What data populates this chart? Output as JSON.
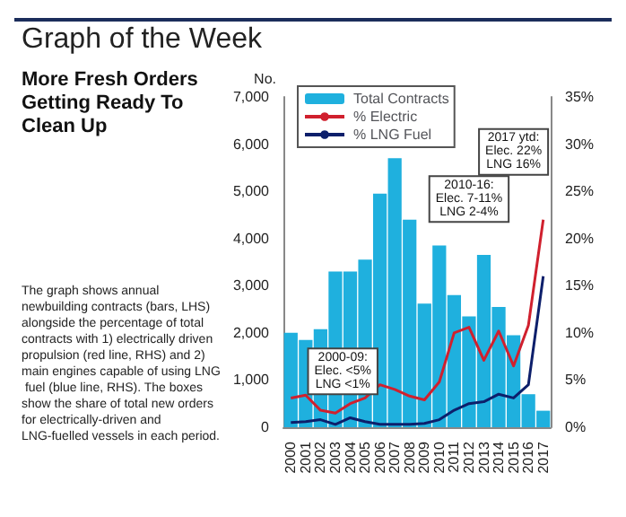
{
  "chart_data": {
    "type": "bar",
    "title": "Graph of the Week",
    "subtitle": "More Fresh Orders Getting Ready To Clean Up",
    "ylabel": "No.",
    "categories": [
      "2000",
      "2001",
      "2002",
      "2003",
      "2004",
      "2005",
      "2006",
      "2007",
      "2008",
      "2009",
      "2010",
      "2011",
      "2012",
      "2013",
      "2014",
      "2015",
      "2016",
      "2017"
    ],
    "series": [
      {
        "name": "Total Contracts",
        "color": "#1fb0de",
        "values": [
          2000,
          1850,
          2080,
          3300,
          3300,
          3550,
          4950,
          5700,
          4400,
          2620,
          3850,
          2800,
          2350,
          3650,
          2550,
          1950,
          700,
          350
        ]
      },
      {
        "name": "% Electric",
        "type": "line",
        "axis": "y2",
        "color": "#d0202e",
        "values": [
          3.1,
          3.4,
          1.8,
          1.5,
          2.5,
          3.1,
          4.5,
          4,
          3.3,
          2.9,
          4.8,
          10,
          10.6,
          7.1,
          10.2,
          6.5,
          10.8,
          22
        ]
      },
      {
        "name": "% LNG Fuel",
        "type": "line",
        "axis": "y2",
        "color": "#0d1f6b",
        "values": [
          0.5,
          0.6,
          0.8,
          0.3,
          1,
          0.6,
          0.3,
          0.3,
          0.3,
          0.4,
          0.8,
          1.8,
          2.5,
          2.7,
          3.5,
          3.1,
          4.5,
          16
        ]
      }
    ],
    "ylim": [
      0,
      7000
    ],
    "yticks": [
      {
        "value": 0,
        "label": "0"
      },
      {
        "value": 1000,
        "label": "1,000"
      },
      {
        "value": 2000,
        "label": "2,000"
      },
      {
        "value": 3000,
        "label": "3,000"
      },
      {
        "value": 4000,
        "label": "4,000"
      },
      {
        "value": 5000,
        "label": "5,000"
      },
      {
        "value": 6000,
        "label": "6,000"
      },
      {
        "value": 7000,
        "label": "7,000"
      }
    ],
    "y2lim": [
      0,
      35
    ],
    "y2ticks": [
      {
        "value": 0,
        "label": "0%"
      },
      {
        "value": 5,
        "label": "5%"
      },
      {
        "value": 10,
        "label": "10%"
      },
      {
        "value": 15,
        "label": "15%"
      },
      {
        "value": 20,
        "label": "20%"
      },
      {
        "value": 25,
        "label": "25%"
      },
      {
        "value": 30,
        "label": "30%"
      },
      {
        "value": 35,
        "label": "35%"
      }
    ],
    "legend": "top left",
    "grid": false,
    "marker": "none",
    "annotations": [
      "The graph shows annual newbuilding contracts (bars, LHS) alongside the percentage of total contracts with 1) electrically driven propulsion (red line, RHS) and 2) main engines capable of using LNG fuel (blue line, RHS). The boxes show the share of total new orders for electrically-driven and LNG-fuelled vessels in each period.",
      "2000-09:\nElec. <5%\nLNG <1%",
      "2010-16:\nElec. 7-11%\nLNG 2-4%",
      "2017 ytd:\nElec. 22%\nLNG 16%"
    ]
  }
}
